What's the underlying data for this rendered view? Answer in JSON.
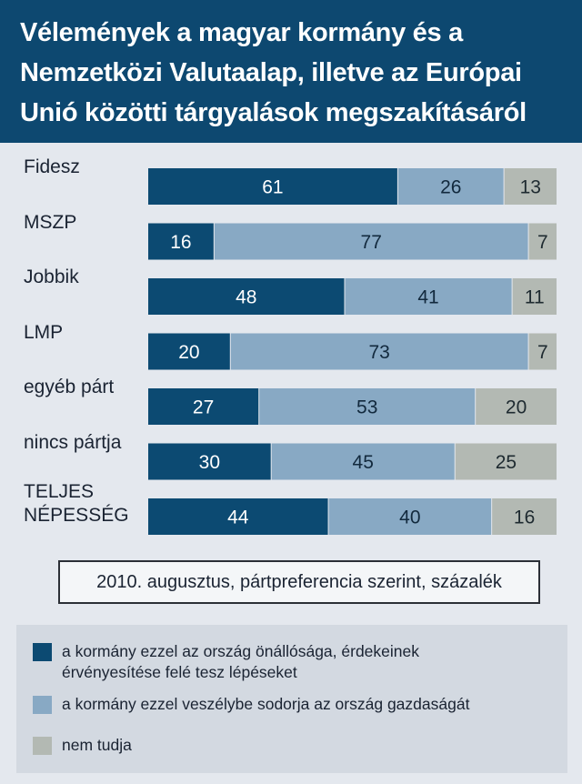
{
  "title": [
    "Vélemények a magyar kormány és a",
    "Nemzetközi Valutaalap, illetve az Európai",
    "Unió közötti tárgyalások megszakításáról"
  ],
  "caption": "2010. augusztus, pártpreferencia szerint, százalék",
  "colors": {
    "dark": "#0c4a72",
    "light": "#88a9c4",
    "gray": "#b3b9b3",
    "header": "#0d4870"
  },
  "legend": [
    {
      "text": [
        "a kormány ezzel az ország önállósága, érdekeinek",
        "érvényesítése felé tesz lépéseket"
      ],
      "color": "#0c4a72"
    },
    {
      "text": [
        "a kormány ezzel veszélybe sodorja az ország gazdaságát"
      ],
      "color": "#88a9c4"
    },
    {
      "text": [
        "nem tudja"
      ],
      "color": "#b3b9b3"
    }
  ],
  "chart_data": {
    "type": "bar",
    "orientation": "horizontal",
    "stacked": true,
    "categories": [
      "Fidesz",
      "MSZP",
      "Jobbik",
      "LMP",
      "egyéb párt",
      "nincs pártja",
      "TELJES NÉPESSÉG"
    ],
    "series": [
      {
        "name": "a kormány ezzel az ország önállósága, érdekeinek érvényesítése felé tesz lépéseket",
        "values": [
          61,
          16,
          48,
          20,
          27,
          30,
          44
        ]
      },
      {
        "name": "a kormány ezzel veszélybe sodorja az ország gazdaságát",
        "values": [
          26,
          77,
          41,
          73,
          53,
          45,
          40
        ]
      },
      {
        "name": "nem tudja",
        "values": [
          13,
          7,
          11,
          7,
          20,
          25,
          16
        ]
      }
    ],
    "xlim": [
      0,
      100
    ],
    "title": "Vélemények a magyar kormány és a Nemzetközi Valutaalap, illetve az Európai Unió közötti tárgyalások megszakításáról",
    "xlabel": "",
    "ylabel": "",
    "legend_position": "bottom",
    "grid": false
  }
}
